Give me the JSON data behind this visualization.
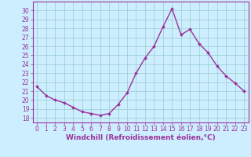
{
  "x": [
    0,
    1,
    2,
    3,
    4,
    5,
    6,
    7,
    8,
    9,
    10,
    11,
    12,
    13,
    14,
    15,
    16,
    17,
    18,
    19,
    20,
    21,
    22,
    23
  ],
  "y": [
    21.5,
    20.5,
    20.0,
    19.7,
    19.2,
    18.7,
    18.5,
    18.3,
    18.5,
    19.5,
    20.8,
    23.0,
    24.7,
    26.0,
    28.2,
    30.2,
    27.3,
    27.9,
    26.3,
    25.3,
    23.8,
    22.7,
    21.9,
    21.0
  ],
  "line_color": "#993399",
  "marker": "D",
  "marker_size": 2.0,
  "linewidth": 1.0,
  "bg_color": "#cceeff",
  "grid_color": "#99cccc",
  "xlabel": "Windchill (Refroidissement éolien,°C)",
  "xlabel_color": "#993399",
  "tick_color": "#993399",
  "axis_color": "#993399",
  "ylim": [
    17.5,
    31.0
  ],
  "xlim": [
    -0.5,
    23.5
  ],
  "yticks": [
    18,
    19,
    20,
    21,
    22,
    23,
    24,
    25,
    26,
    27,
    28,
    29,
    30
  ],
  "xticks": [
    0,
    1,
    2,
    3,
    4,
    5,
    6,
    7,
    8,
    9,
    10,
    11,
    12,
    13,
    14,
    15,
    16,
    17,
    18,
    19,
    20,
    21,
    22,
    23
  ],
  "tick_fontsize": 5.5,
  "xlabel_fontsize": 6.5,
  "xlabel_fontweight": "bold"
}
